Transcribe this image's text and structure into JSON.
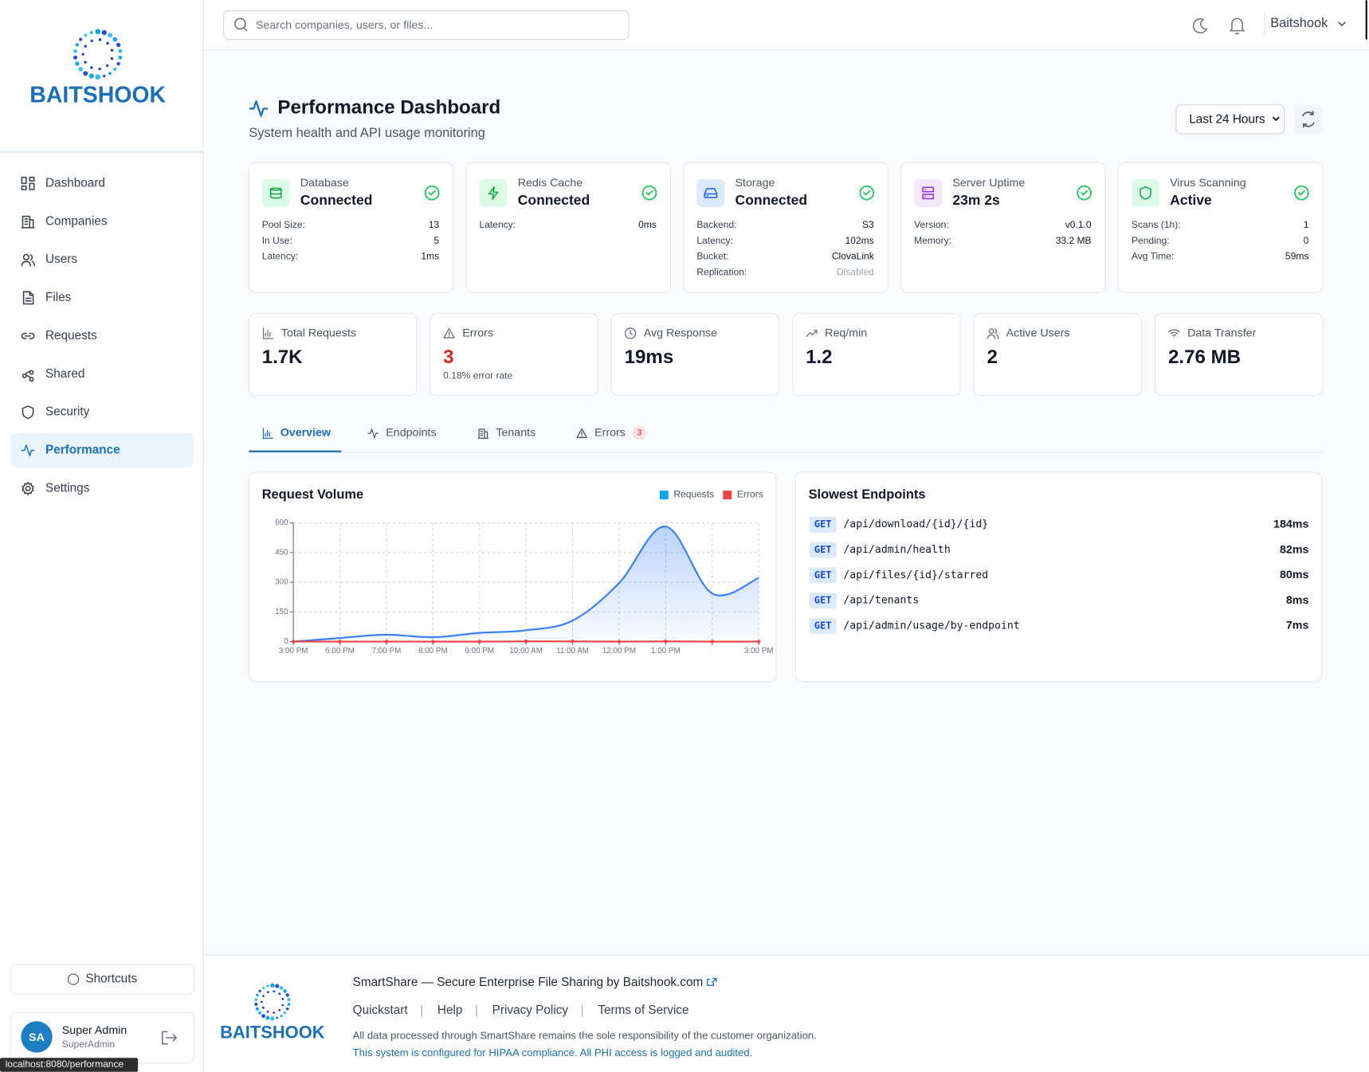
{
  "sidebar": {
    "brand": "BAITSHOOK",
    "nav": [
      {
        "label": "Dashboard",
        "icon": "grid"
      },
      {
        "label": "Companies",
        "icon": "building"
      },
      {
        "label": "Users",
        "icon": "users"
      },
      {
        "label": "Files",
        "icon": "file"
      },
      {
        "label": "Requests",
        "icon": "link"
      },
      {
        "label": "Shared",
        "icon": "share"
      },
      {
        "label": "Security",
        "icon": "shield"
      },
      {
        "label": "Performance",
        "icon": "pulse",
        "active": true
      },
      {
        "label": "Settings",
        "icon": "gear"
      }
    ],
    "shortcuts": "Shortcuts",
    "user": {
      "initials": "SA",
      "name": "Super Admin",
      "role": "SuperAdmin"
    }
  },
  "header": {
    "search_placeholder": "Search companies, users, or files...",
    "account": "Baitshook"
  },
  "page": {
    "title": "Performance Dashboard",
    "subtitle": "System health and API usage monitoring",
    "range": "Last 24 Hours"
  },
  "status_cards": [
    {
      "label": "Database",
      "status": "Connected",
      "color": "#16a34a",
      "bg": "#dcfce7",
      "icon": "db",
      "rows": [
        {
          "label": "Pool Size:",
          "value": "13"
        },
        {
          "label": "In Use:",
          "value": "5"
        },
        {
          "label": "Latency:",
          "value": "1ms"
        }
      ]
    },
    {
      "label": "Redis Cache",
      "status": "Connected",
      "color": "#16a34a",
      "bg": "#dcfce7",
      "icon": "bolt",
      "rows": [
        {
          "label": "Latency:",
          "value": "0ms"
        }
      ]
    },
    {
      "label": "Storage",
      "status": "Connected",
      "color": "#2563eb",
      "bg": "#dbeafe",
      "icon": "drive",
      "rows": [
        {
          "label": "Backend:",
          "value": "S3"
        },
        {
          "label": "Latency:",
          "value": "102ms"
        },
        {
          "label": "Bucket:",
          "value": "ClovaLink"
        },
        {
          "label": "Replication:",
          "value": "Disabled",
          "muted": true
        }
      ]
    },
    {
      "label": "Server Uptime",
      "status": "23m 2s",
      "color": "#9333ea",
      "bg": "#f3e8ff",
      "icon": "server",
      "rows": [
        {
          "label": "Version:",
          "value": "v0.1.0"
        },
        {
          "label": "Memory:",
          "value": "33.2 MB"
        }
      ]
    },
    {
      "label": "Virus Scanning",
      "status": "Active",
      "color": "#16a34a",
      "bg": "#dcfce7",
      "icon": "shield",
      "rows": [
        {
          "label": "Scans (1h):",
          "value": "1"
        },
        {
          "label": "Pending:",
          "value": "0"
        },
        {
          "label": "Avg Time:",
          "value": "59ms"
        }
      ]
    }
  ],
  "stats": [
    {
      "label": "Total Requests",
      "value": "1.7K",
      "icon": "bars"
    },
    {
      "label": "Errors",
      "value": "3",
      "note": "0.18% error rate",
      "color": "#dc2626",
      "icon": "warn"
    },
    {
      "label": "Avg Response",
      "value": "19ms",
      "icon": "clock"
    },
    {
      "label": "Req/min",
      "value": "1.2",
      "icon": "trend"
    },
    {
      "label": "Active Users",
      "value": "2",
      "icon": "users"
    },
    {
      "label": "Data Transfer",
      "value": "2.76 MB",
      "icon": "wifi"
    }
  ],
  "tabs": [
    {
      "label": "Overview",
      "icon": "bars",
      "active": true
    },
    {
      "label": "Endpoints",
      "icon": "pulse"
    },
    {
      "label": "Tenants",
      "icon": "building"
    },
    {
      "label": "Errors",
      "icon": "warn",
      "badge": "3"
    }
  ],
  "chart_data": {
    "type": "line",
    "title": "Request Volume",
    "categories": [
      "3:00 PM",
      "6:00 PM",
      "7:00 PM",
      "8:00 PM",
      "9:00 PM",
      "10:00 AM",
      "11:00 AM",
      "12:00 PM",
      "1:00 PM",
      null,
      "3:00 PM"
    ],
    "series": [
      {
        "name": "Requests",
        "color": "#3b82f6",
        "legend_color": "#0ea5e9",
        "area": true,
        "values": [
          0,
          18,
          35,
          22,
          44,
          57,
          106,
          296,
          582,
          243,
          322
        ]
      },
      {
        "name": "Errors",
        "color": "#ef4444",
        "values": [
          0,
          0,
          0,
          0,
          0,
          1,
          1,
          0,
          1,
          0,
          0
        ]
      }
    ],
    "ylim": [
      0,
      600
    ],
    "yticks": [
      0,
      150,
      300,
      450,
      600
    ],
    "grid": true,
    "legend": "upper right"
  },
  "slowest": {
    "title": "Slowest Endpoints",
    "rows": [
      {
        "method": "GET",
        "path": "/api/download/{id}/{id}",
        "time": "184ms"
      },
      {
        "method": "GET",
        "path": "/api/admin/health",
        "time": "82ms"
      },
      {
        "method": "GET",
        "path": "/api/files/{id}/starred",
        "time": "80ms"
      },
      {
        "method": "GET",
        "path": "/api/tenants",
        "time": "8ms"
      },
      {
        "method": "GET",
        "path": "/api/admin/usage/by-endpoint",
        "time": "7ms"
      }
    ]
  },
  "footer": {
    "brand": "BAITSHOOK",
    "tagline": "SmartShare — Secure Enterprise File Sharing by Baitshook.com",
    "links": [
      "Quickstart",
      "Help",
      "Privacy Policy",
      "Terms of Service"
    ],
    "disclaimer": "All data processed through SmartShare remains the sole responsibility of the customer organization.",
    "compliance": "This system is configured for HIPAA compliance. All PHI access is logged and audited."
  },
  "status_bar": "localhost:8080/performance"
}
